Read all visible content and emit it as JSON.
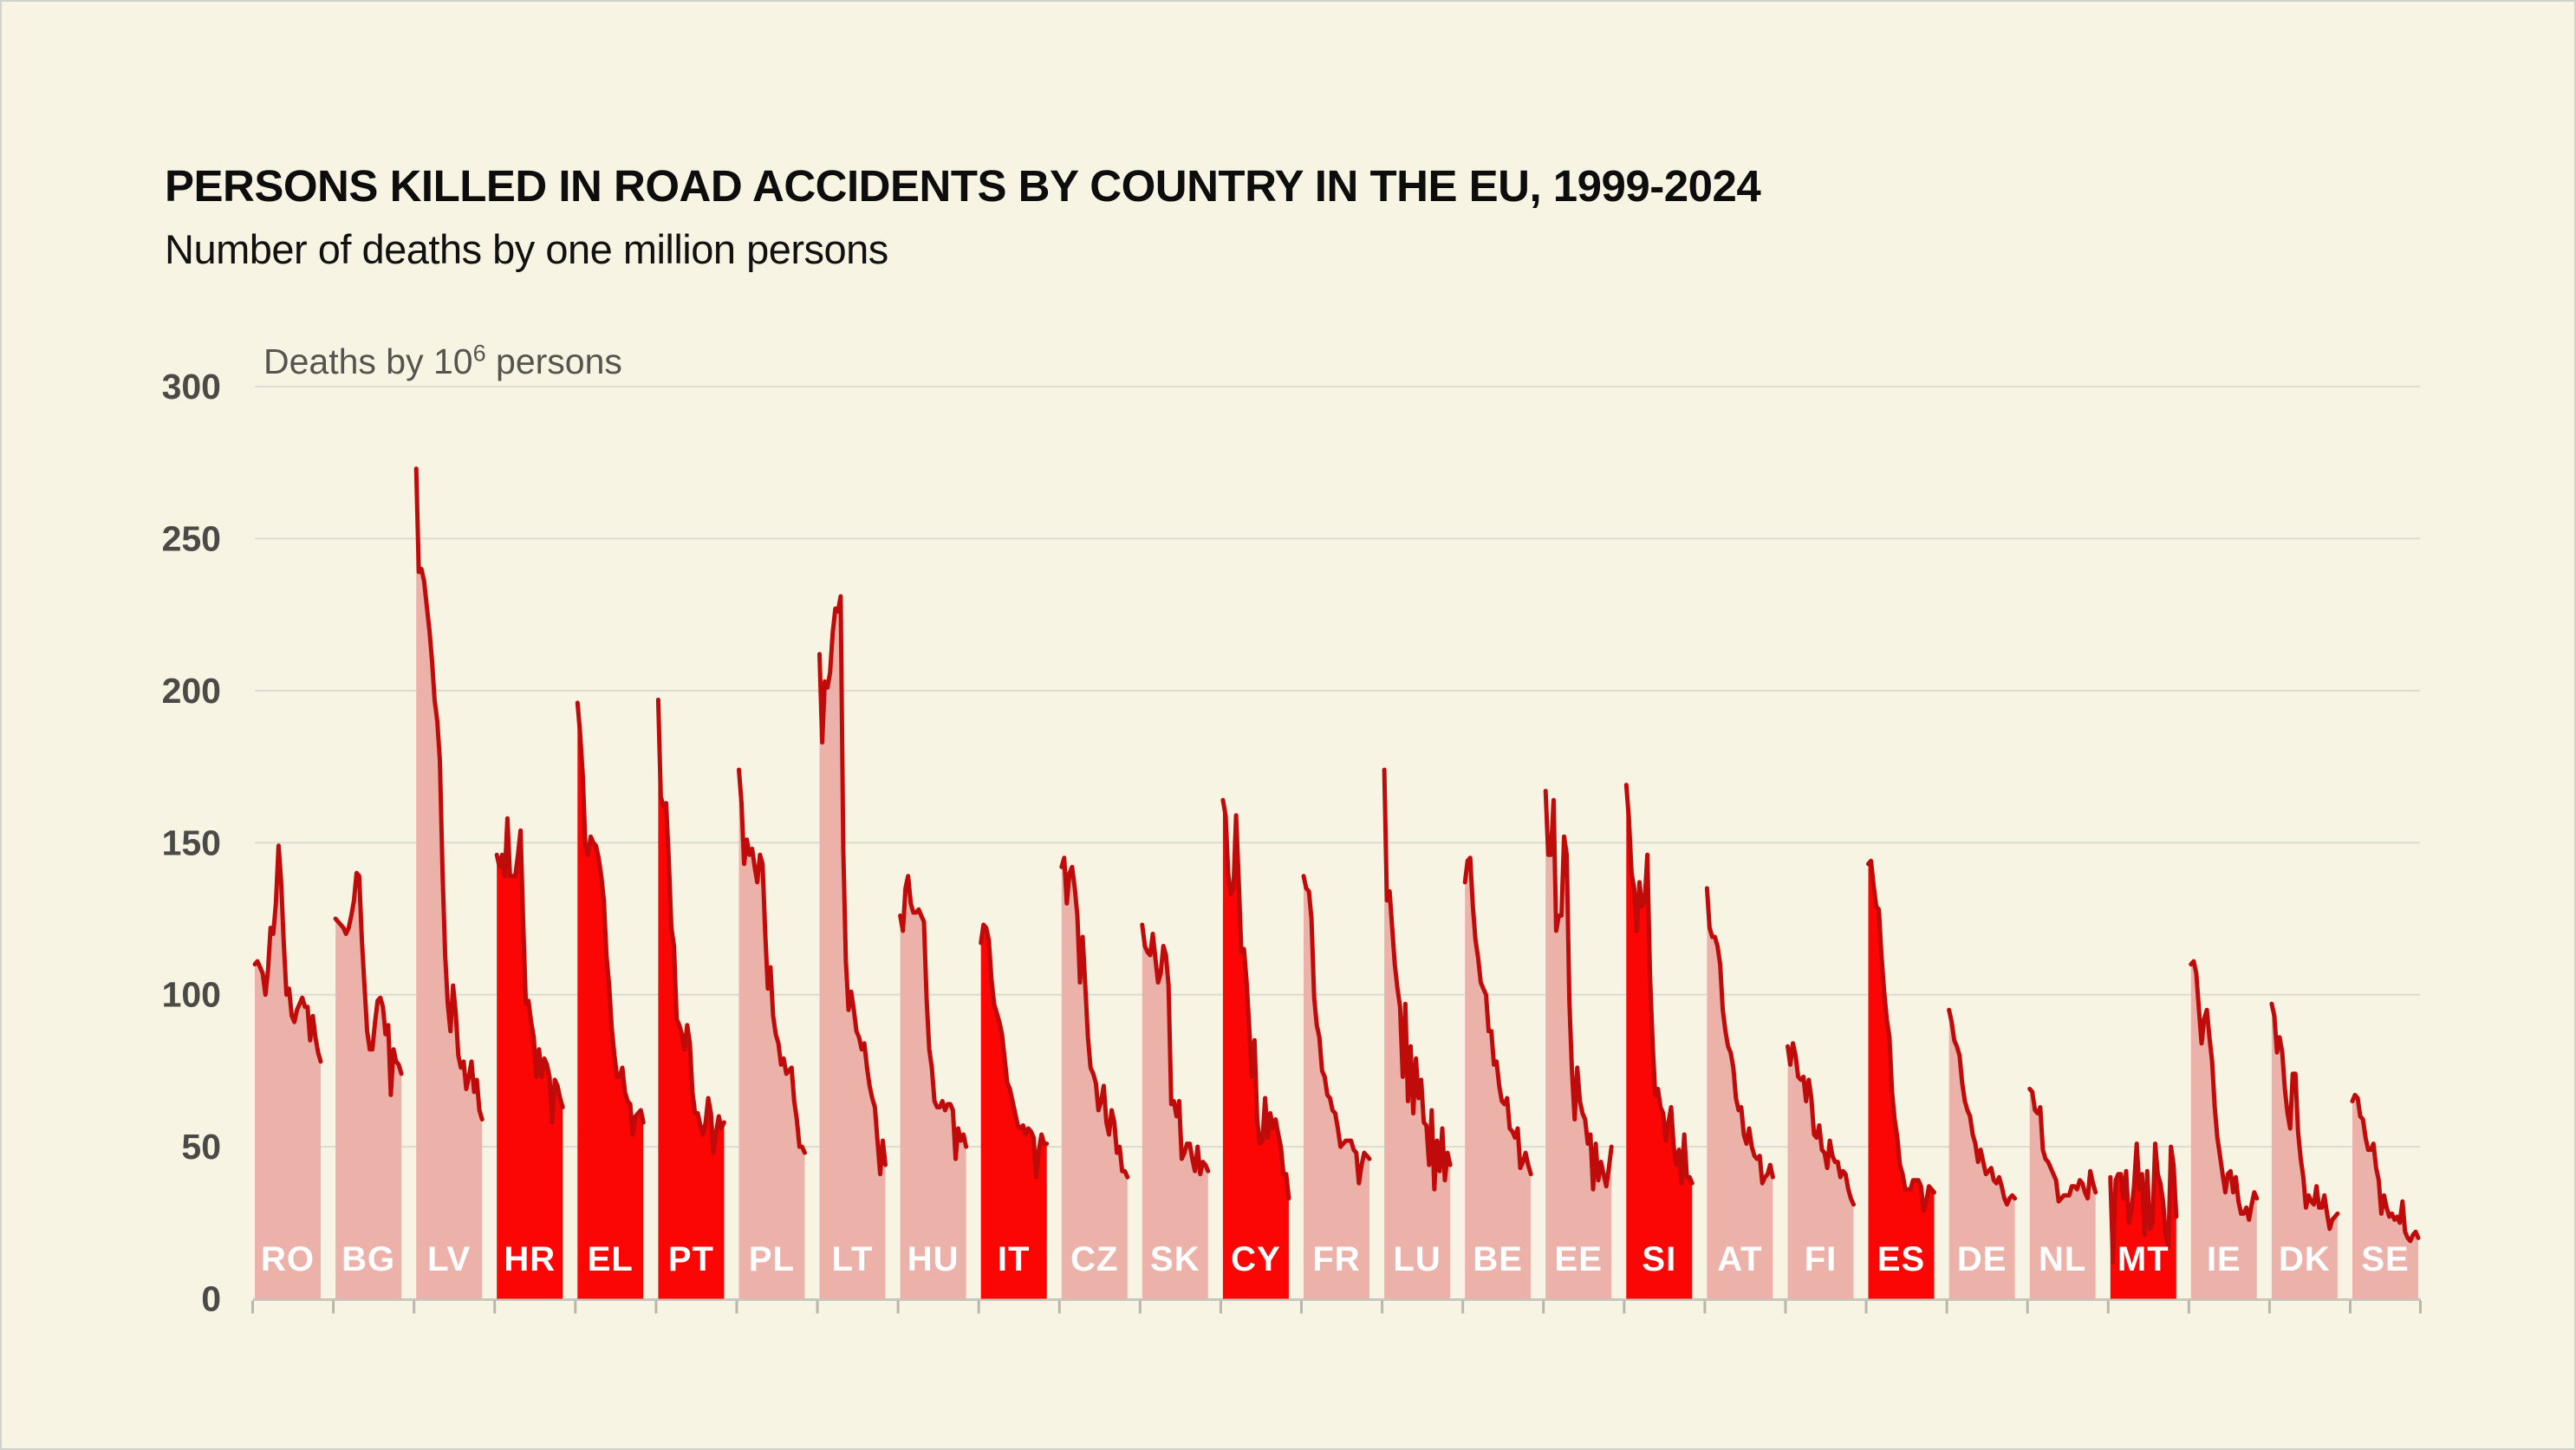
{
  "header": {
    "title": "PERSONS KILLED IN ROAD ACCIDENTS BY COUNTRY IN THE EU, 1999-2024",
    "subtitle": "Number of deaths by one million persons"
  },
  "y_axis": {
    "title_prefix": "Deaths by 10",
    "title_superscript": "6",
    "title_suffix": " persons"
  },
  "colors": {
    "background": "#f8f4e3",
    "muted_fill": "#ecb2aa",
    "highlight_fill": "#fb0505",
    "line_stroke": "#c00b0b",
    "gridline": "#dcdbd2",
    "baseline": "#c8c7be",
    "axis_tick": "#b8b7ae",
    "axis_text": "#4b4a46",
    "axis_title_text": "#56544e",
    "country_label_text": "#ffffff"
  },
  "chart_data": {
    "type": "area",
    "layout": "small-multiples",
    "title": "PERSONS KILLED IN ROAD ACCIDENTS BY COUNTRY IN THE EU, 1999-2024",
    "subtitle": "Number of deaths by one million persons",
    "ylabel": "Deaths by 10^6 persons",
    "x_start_year": 1999,
    "x_end_year": 2024,
    "ylim": [
      0,
      300
    ],
    "yticks": [
      0,
      50,
      100,
      150,
      200,
      250,
      300
    ],
    "grid": true,
    "legend_position": "none",
    "series": [
      {
        "code": "RO",
        "highlighted": false,
        "values": [
          110,
          111,
          109,
          107,
          100,
          108,
          122,
          120,
          130,
          149,
          137,
          117,
          100,
          102,
          93,
          91,
          95,
          97,
          99,
          96,
          96,
          85,
          93,
          86,
          81,
          78
        ]
      },
      {
        "code": "BG",
        "highlighted": false,
        "values": [
          125,
          124,
          123,
          122,
          120,
          122,
          126,
          131,
          140,
          139,
          118,
          103,
          88,
          82,
          82,
          91,
          98,
          99,
          96,
          87,
          90,
          67,
          82,
          78,
          77,
          74
        ]
      },
      {
        "code": "LV",
        "highlighted": false,
        "values": [
          273,
          239,
          240,
          236,
          228,
          220,
          210,
          197,
          190,
          177,
          140,
          113,
          97,
          88,
          103,
          94,
          80,
          76,
          78,
          69,
          73,
          78,
          68,
          72,
          62,
          59
        ]
      },
      {
        "code": "HR",
        "highlighted": true,
        "values": [
          146,
          142,
          146,
          139,
          158,
          139,
          139,
          139,
          146,
          154,
          124,
          97,
          98,
          91,
          86,
          73,
          82,
          73,
          79,
          77,
          73,
          58,
          72,
          70,
          66,
          63
        ]
      },
      {
        "code": "EL",
        "highlighted": true,
        "values": [
          196,
          186,
          172,
          149,
          146,
          152,
          150,
          149,
          145,
          139,
          131,
          113,
          103,
          89,
          80,
          73,
          73,
          76,
          68,
          65,
          64,
          54,
          60,
          61,
          62,
          58
        ]
      },
      {
        "code": "PT",
        "highlighted": true,
        "values": [
          197,
          165,
          162,
          163,
          145,
          122,
          116,
          92,
          90,
          87,
          82,
          90,
          84,
          68,
          61,
          61,
          57,
          54,
          58,
          66,
          61,
          48,
          55,
          60,
          56,
          58
        ]
      },
      {
        "code": "PL",
        "highlighted": false,
        "values": [
          174,
          163,
          143,
          151,
          146,
          148,
          142,
          137,
          146,
          143,
          120,
          102,
          109,
          93,
          87,
          84,
          77,
          79,
          74,
          75,
          76,
          65,
          59,
          50,
          50,
          48
        ]
      },
      {
        "code": "LT",
        "highlighted": false,
        "values": [
          212,
          183,
          203,
          201,
          206,
          219,
          227,
          226,
          231,
          148,
          111,
          95,
          101,
          95,
          88,
          86,
          82,
          84,
          76,
          70,
          66,
          63,
          52,
          41,
          52,
          44
        ]
      },
      {
        "code": "HU",
        "highlighted": false,
        "values": [
          126,
          121,
          135,
          139,
          130,
          127,
          127,
          128,
          126,
          124,
          99,
          82,
          76,
          65,
          63,
          63,
          65,
          62,
          64,
          64,
          62,
          46,
          56,
          52,
          54,
          50
        ]
      },
      {
        "code": "IT",
        "highlighted": true,
        "values": [
          117,
          123,
          122,
          118,
          105,
          97,
          94,
          91,
          87,
          79,
          71,
          69,
          65,
          61,
          57,
          56,
          57,
          54,
          56,
          55,
          53,
          40,
          49,
          54,
          51,
          51
        ]
      },
      {
        "code": "CZ",
        "highlighted": false,
        "values": [
          142,
          145,
          130,
          140,
          142,
          135,
          126,
          104,
          119,
          103,
          86,
          76,
          74,
          71,
          62,
          65,
          70,
          58,
          54,
          62,
          58,
          48,
          50,
          42,
          42,
          40
        ]
      },
      {
        "code": "SK",
        "highlighted": false,
        "values": [
          123,
          116,
          114,
          113,
          120,
          112,
          104,
          107,
          116,
          113,
          103,
          64,
          65,
          60,
          65,
          46,
          48,
          51,
          51,
          46,
          42,
          50,
          41,
          45,
          44,
          42
        ]
      },
      {
        "code": "CY",
        "highlighted": true,
        "values": [
          164,
          159,
          140,
          133,
          135,
          159,
          137,
          114,
          115,
          104,
          89,
          73,
          85,
          59,
          51,
          52,
          66,
          53,
          61,
          56,
          59,
          54,
          50,
          41,
          41,
          33
        ]
      },
      {
        "code": "FR",
        "highlighted": false,
        "values": [
          139,
          135,
          134,
          125,
          99,
          90,
          86,
          75,
          73,
          67,
          66,
          62,
          61,
          56,
          50,
          51,
          52,
          52,
          52,
          49,
          48,
          38,
          44,
          48,
          47,
          46
        ]
      },
      {
        "code": "LU",
        "highlighted": false,
        "values": [
          174,
          131,
          134,
          122,
          110,
          102,
          96,
          73,
          97,
          65,
          83,
          61,
          79,
          66,
          72,
          58,
          57,
          44,
          62,
          36,
          52,
          42,
          56,
          39,
          48,
          44
        ]
      },
      {
        "code": "BE",
        "highlighted": false,
        "values": [
          137,
          144,
          145,
          129,
          118,
          112,
          104,
          102,
          100,
          88,
          88,
          77,
          78,
          70,
          65,
          64,
          66,
          56,
          55,
          53,
          56,
          43,
          45,
          48,
          44,
          41
        ]
      },
      {
        "code": "EE",
        "highlighted": false,
        "values": [
          167,
          146,
          146,
          164,
          121,
          126,
          126,
          152,
          146,
          98,
          75,
          59,
          76,
          65,
          61,
          59,
          51,
          54,
          36,
          51,
          39,
          45,
          41,
          37,
          43,
          50
        ]
      },
      {
        "code": "SI",
        "highlighted": true,
        "values": [
          169,
          158,
          140,
          135,
          121,
          137,
          129,
          131,
          146,
          106,
          84,
          67,
          69,
          63,
          61,
          52,
          58,
          63,
          50,
          44,
          49,
          38,
          54,
          40,
          40,
          38
        ]
      },
      {
        "code": "AT",
        "highlighted": false,
        "values": [
          135,
          122,
          119,
          119,
          116,
          110,
          95,
          88,
          83,
          81,
          76,
          66,
          62,
          63,
          54,
          51,
          56,
          50,
          47,
          46,
          47,
          38,
          40,
          41,
          44,
          40
        ]
      },
      {
        "code": "FI",
        "highlighted": false,
        "values": [
          83,
          77,
          84,
          80,
          73,
          72,
          73,
          65,
          72,
          66,
          54,
          53,
          57,
          49,
          48,
          43,
          52,
          47,
          45,
          45,
          40,
          42,
          41,
          36,
          33,
          31
        ]
      },
      {
        "code": "ES",
        "highlighted": true,
        "values": [
          143,
          144,
          136,
          129,
          128,
          113,
          101,
          92,
          86,
          68,
          59,
          53,
          44,
          41,
          36,
          36,
          36,
          39,
          39,
          39,
          37,
          29,
          32,
          37,
          36,
          35
        ]
      },
      {
        "code": "DE",
        "highlighted": false,
        "values": [
          95,
          91,
          85,
          83,
          80,
          71,
          65,
          62,
          60,
          54,
          51,
          45,
          49,
          45,
          41,
          42,
          43,
          39,
          38,
          40,
          37,
          33,
          31,
          33,
          34,
          33
        ]
      },
      {
        "code": "NL",
        "highlighted": false,
        "values": [
          69,
          68,
          62,
          61,
          63,
          49,
          46,
          45,
          43,
          41,
          39,
          32,
          33,
          34,
          34,
          34,
          37,
          37,
          36,
          39,
          38,
          35,
          33,
          42,
          38,
          35
        ]
      },
      {
        "code": "MT",
        "highlighted": true,
        "values": [
          40,
          12,
          39,
          41,
          41,
          33,
          42,
          25,
          29,
          37,
          51,
          36,
          41,
          21,
          42,
          23,
          25,
          51,
          41,
          38,
          32,
          21,
          17,
          50,
          44,
          27
        ]
      },
      {
        "code": "IE",
        "highlighted": false,
        "values": [
          110,
          111,
          107,
          95,
          84,
          92,
          95,
          86,
          78,
          63,
          53,
          47,
          41,
          35,
          41,
          42,
          35,
          40,
          32,
          28,
          28,
          30,
          26,
          31,
          35,
          33
        ]
      },
      {
        "code": "DK",
        "highlighted": false,
        "values": [
          97,
          93,
          81,
          86,
          81,
          69,
          61,
          56,
          74,
          74,
          55,
          46,
          40,
          30,
          34,
          32,
          31,
          37,
          30,
          30,
          34,
          28,
          23,
          26,
          27,
          28
        ]
      },
      {
        "code": "SE",
        "highlighted": false,
        "values": [
          65,
          67,
          66,
          60,
          59,
          53,
          49,
          49,
          51,
          43,
          39,
          28,
          34,
          30,
          27,
          28,
          26,
          27,
          25,
          32,
          22,
          20,
          19,
          21,
          22,
          20
        ]
      }
    ]
  }
}
